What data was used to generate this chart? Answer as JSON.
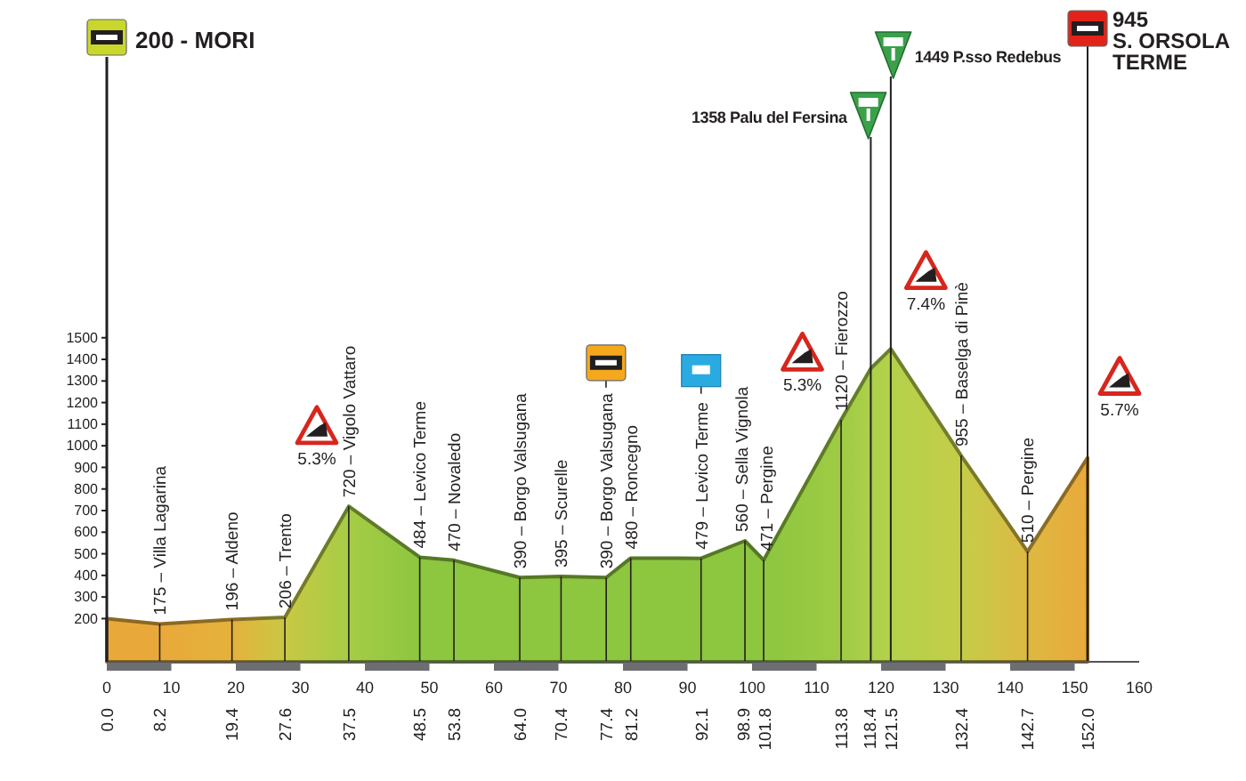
{
  "chart_data": {
    "type": "area",
    "x": [
      0,
      8.2,
      19.4,
      27.6,
      37.5,
      48.5,
      53.8,
      64.0,
      70.4,
      77.4,
      81.2,
      92.1,
      98.9,
      101.8,
      113.8,
      118.4,
      121.5,
      132.4,
      142.7,
      152.0
    ],
    "values": [
      200,
      175,
      196,
      206,
      720,
      484,
      470,
      390,
      395,
      390,
      480,
      479,
      560,
      471,
      1120,
      1358,
      1449,
      955,
      510,
      945
    ],
    "colors": [
      "#e9a93a",
      "#e9a93a",
      "#e4b23c",
      "#c9c844",
      "#a6cc46",
      "#8dc63f",
      "#8dc63f",
      "#8dc63f",
      "#8dc63f",
      "#8dc63f",
      "#8dc63f",
      "#8dc63f",
      "#8dc63f",
      "#8dc63f",
      "#9fcb44",
      "#acd04a",
      "#b4d14a",
      "#c4cd48",
      "#ddb942",
      "#e9a93a"
    ],
    "xlim": [
      0,
      160
    ],
    "xticks": [
      0,
      10,
      20,
      30,
      40,
      50,
      60,
      70,
      80,
      90,
      100,
      110,
      120,
      130,
      140,
      150,
      160
    ],
    "ylim": [
      0,
      2800
    ],
    "yticks": [
      200,
      300,
      400,
      500,
      600,
      700,
      800,
      900,
      1000,
      1100,
      1200,
      1300,
      1400,
      1500
    ],
    "x2lim": [
      0,
      160
    ],
    "x2ticks": [
      {
        "value": 0,
        "label": "0.0"
      },
      8.2,
      19.4,
      27.6,
      37.5,
      48.5,
      53.8,
      {
        "value": 64,
        "label": "64.0"
      },
      70.4,
      77.4,
      81.2,
      92.1,
      98.9,
      101.8,
      113.8,
      118.4,
      121.5,
      132.4,
      142.7,
      {
        "value": 152,
        "label": "152.0"
      }
    ],
    "ref_lines": [
      {
        "axis": "x",
        "value": 118.4,
        "label": "1358 Palu del Fersina"
      },
      {
        "axis": "x",
        "value": 121.5,
        "label": "1449 P.sso Redebus"
      },
      {
        "axis": "x",
        "value": 152.0,
        "label": "945\nS. ORSOLA\nTERME"
      }
    ],
    "annotations": [
      "200 - MORI",
      {
        "text": "175 – Villa Lagarina",
        "x": 8.2,
        "y": 175
      },
      {
        "text": "196 – Aldeno",
        "x": 19.4,
        "y": 196
      },
      {
        "text": "206 – Trento",
        "x": 27.6,
        "y": 206
      },
      {
        "text": "720 – Vigolo Vattaro",
        "x": 37.5,
        "y": 720
      },
      {
        "text": "484 – Levico Terme",
        "x": 48.5,
        "y": 484
      },
      {
        "text": "470 – Novaledo",
        "x": 53.8,
        "y": 470
      },
      {
        "text": "390 – Borgo Valsugana",
        "x": 64.0,
        "y": 390
      },
      {
        "text": "395 – Scurelle",
        "x": 70.4,
        "y": 395
      },
      {
        "text": "390 – Borgo Valsugana",
        "x": 77.4,
        "y": 390
      },
      {
        "text": "480 – Roncegno",
        "x": 81.2,
        "y": 480
      },
      {
        "text": "479 – Levico Terme",
        "x": 92.1,
        "y": 479
      },
      {
        "text": "560 – Sella Vignola",
        "x": 98.9,
        "y": 560
      },
      {
        "text": "471 – Pergine",
        "x": 101.8,
        "y": 471
      },
      {
        "text": "1120 – Fierozzo",
        "x": 113.8,
        "y": 1120
      },
      {
        "text": "955 – Baselga di Pinè",
        "x": 132.4,
        "y": 955
      },
      {
        "text": "510 – Pergine",
        "x": 142.7,
        "y": 510
      },
      "5.3%",
      "5.3%",
      "7.4%",
      "5.7%"
    ]
  }
}
